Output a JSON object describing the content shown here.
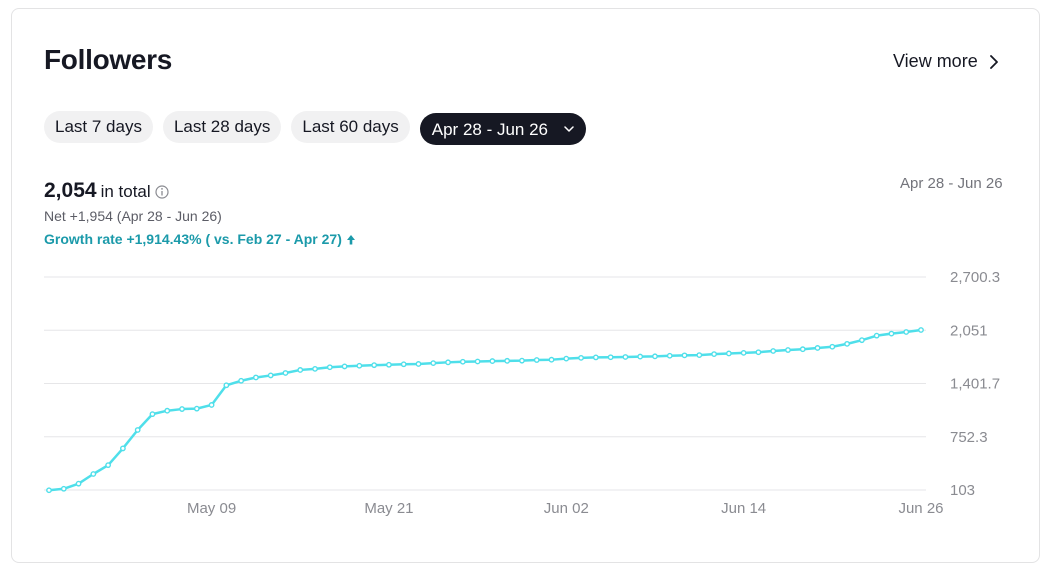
{
  "header": {
    "title": "Followers",
    "view_more": "View more"
  },
  "tabs": [
    {
      "label": "Last 7 days"
    },
    {
      "label": "Last 28 days"
    },
    {
      "label": "Last 60 days"
    },
    {
      "label": "Apr 28 - Jun 26"
    }
  ],
  "summary": {
    "total": "2,054",
    "total_label": "in total",
    "net": "Net +1,954 (Apr 28 - Jun 26)",
    "growth": "Growth rate +1,914.43% ( vs. Feb 27 - Apr 27)",
    "range": "Apr 28 - Jun 26"
  },
  "colors": {
    "line": "#4fdfea",
    "grid": "#e6e6e8",
    "accent": "#1b9aaa"
  },
  "icons": {
    "info": "info-icon",
    "chevron": "chevron-right-icon",
    "dropdown": "chevron-down-icon",
    "up": "arrow-up-icon"
  },
  "chart_data": {
    "type": "line",
    "x_tick_labels": [
      "May 09",
      "May 21",
      "Jun 02",
      "Jun 14",
      "Jun 26"
    ],
    "y_tick_labels": [
      "2,700.3",
      "2,051",
      "1,401.7",
      "752.3",
      "103"
    ],
    "ylim": [
      103,
      2700.3
    ],
    "xlim": [
      "2024-04-28",
      "2024-06-26"
    ],
    "grid": true,
    "series": [
      {
        "x": [
          "2024-04-28",
          "2024-04-29",
          "2024-04-30",
          "2024-05-01",
          "2024-05-02",
          "2024-05-03",
          "2024-05-04",
          "2024-05-05",
          "2024-05-06",
          "2024-05-07",
          "2024-05-08",
          "2024-05-09",
          "2024-05-10",
          "2024-05-11",
          "2024-05-12",
          "2024-05-13",
          "2024-05-14",
          "2024-05-15",
          "2024-05-16",
          "2024-05-17",
          "2024-05-18",
          "2024-05-19",
          "2024-05-20",
          "2024-05-21",
          "2024-05-22",
          "2024-05-23",
          "2024-05-24",
          "2024-05-25",
          "2024-05-26",
          "2024-05-27",
          "2024-05-28",
          "2024-05-29",
          "2024-05-30",
          "2024-05-31",
          "2024-06-01",
          "2024-06-02",
          "2024-06-03",
          "2024-06-04",
          "2024-06-05",
          "2024-06-06",
          "2024-06-07",
          "2024-06-08",
          "2024-06-09",
          "2024-06-10",
          "2024-06-11",
          "2024-06-12",
          "2024-06-13",
          "2024-06-14",
          "2024-06-15",
          "2024-06-16",
          "2024-06-17",
          "2024-06-18",
          "2024-06-19",
          "2024-06-20",
          "2024-06-21",
          "2024-06-22",
          "2024-06-23",
          "2024-06-24",
          "2024-06-25",
          "2024-06-26"
        ],
        "values": [
          100,
          118,
          180,
          298,
          406,
          610,
          835,
          1028,
          1070,
          1090,
          1095,
          1140,
          1380,
          1435,
          1475,
          1500,
          1530,
          1567,
          1580,
          1600,
          1610,
          1618,
          1625,
          1630,
          1636,
          1640,
          1650,
          1660,
          1667,
          1670,
          1675,
          1678,
          1680,
          1688,
          1692,
          1705,
          1714,
          1720,
          1722,
          1725,
          1730,
          1733,
          1740,
          1745,
          1748,
          1760,
          1768,
          1775,
          1783,
          1798,
          1810,
          1820,
          1835,
          1850,
          1885,
          1930,
          1985,
          2010,
          2030,
          2054
        ]
      }
    ]
  }
}
